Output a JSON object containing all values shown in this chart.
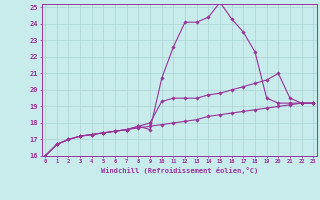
{
  "xlabel": "Windchill (Refroidissement éolien,°C)",
  "ylabel": "",
  "bg_color": "#c8ecec",
  "grid_color": "#aad4d4",
  "line_color": "#993399",
  "xmin": 0,
  "xmax": 23,
  "ymin": 16,
  "ymax": 25,
  "line1_x": [
    0,
    1,
    2,
    3,
    4,
    5,
    6,
    7,
    8,
    9,
    10,
    11,
    12,
    13,
    14,
    15,
    16,
    17,
    18,
    19,
    20,
    21,
    22,
    23
  ],
  "line1_y": [
    16.0,
    16.7,
    17.0,
    17.2,
    17.3,
    17.4,
    17.5,
    17.6,
    17.7,
    17.8,
    17.9,
    18.0,
    18.1,
    18.2,
    18.4,
    18.5,
    18.6,
    18.7,
    18.8,
    18.9,
    19.0,
    19.1,
    19.2,
    19.2
  ],
  "line2_x": [
    0,
    1,
    2,
    3,
    4,
    5,
    6,
    7,
    8,
    9,
    10,
    11,
    12,
    13,
    14,
    15,
    16,
    17,
    18,
    19,
    20,
    21,
    22,
    23
  ],
  "line2_y": [
    16.0,
    16.7,
    17.0,
    17.2,
    17.3,
    17.4,
    17.5,
    17.6,
    17.8,
    18.0,
    19.3,
    19.5,
    19.5,
    19.5,
    19.7,
    19.8,
    20.0,
    20.2,
    20.4,
    20.6,
    21.0,
    19.5,
    19.2,
    19.2
  ],
  "line3_x": [
    0,
    1,
    2,
    3,
    4,
    5,
    6,
    7,
    8,
    9,
    10,
    11,
    12,
    13,
    14,
    15,
    16,
    17,
    18,
    19,
    20,
    21,
    22,
    23
  ],
  "line3_y": [
    16.0,
    16.7,
    17.0,
    17.2,
    17.3,
    17.4,
    17.5,
    17.6,
    17.8,
    17.6,
    20.7,
    22.6,
    24.1,
    24.1,
    24.4,
    25.3,
    24.3,
    23.5,
    22.3,
    19.5,
    19.2,
    19.2,
    19.2,
    19.2
  ]
}
